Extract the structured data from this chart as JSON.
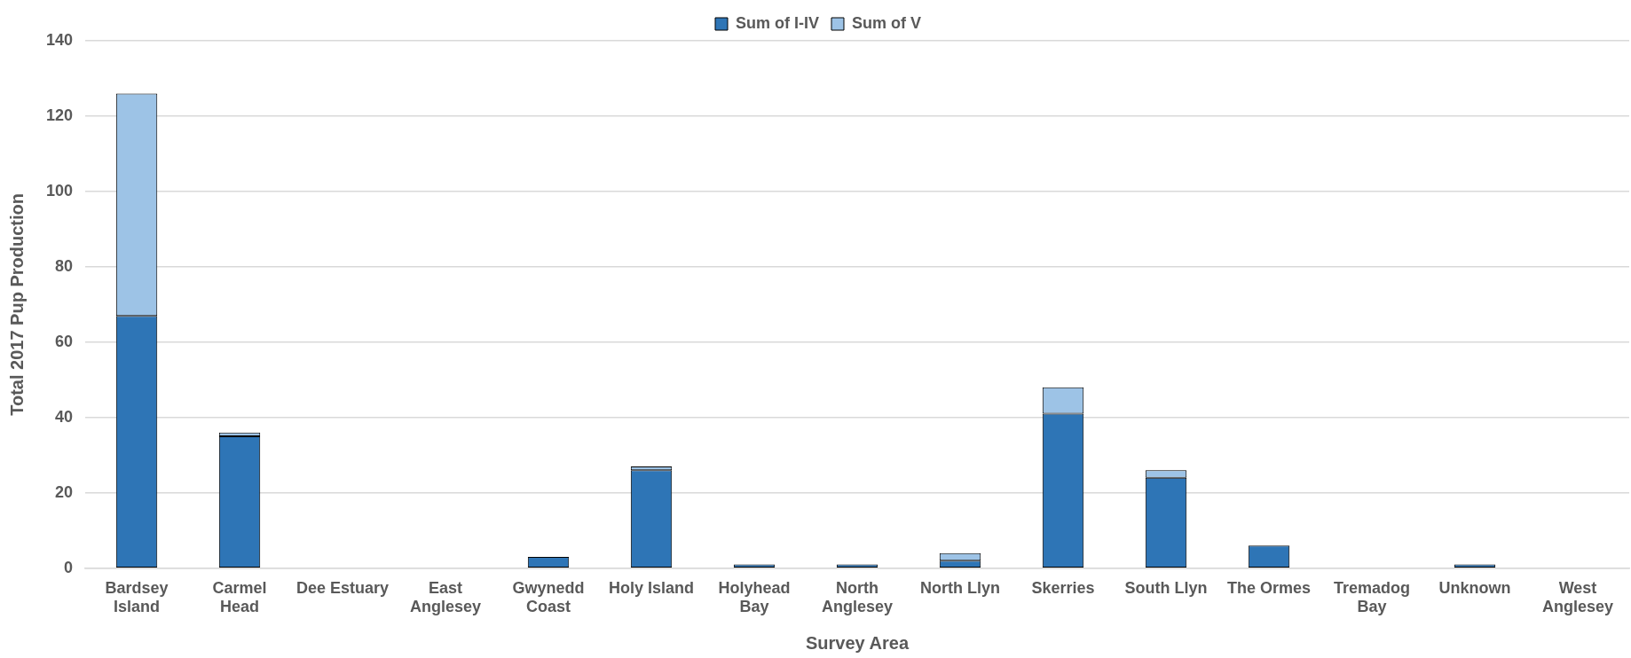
{
  "chart_data": {
    "type": "bar",
    "xlabel": "Survey Area",
    "ylabel": "Total 2017 Pup Production",
    "categories": [
      "Bardsey Island",
      "Carmel Head",
      "Dee Estuary",
      "East Anglesey",
      "Gwynedd Coast",
      "Holy Island",
      "Holyhead Bay",
      "North Anglesey",
      "North Llyn",
      "Skerries",
      "South Llyn",
      "The Ormes",
      "Tremadog Bay",
      "Unknown",
      "West Anglesey"
    ],
    "series": [
      {
        "name": "Sum of I-IV",
        "color": "#2e75b6",
        "values": [
          67,
          35,
          0,
          0,
          3,
          26,
          1,
          1,
          2,
          41,
          24,
          6,
          0,
          1,
          0
        ]
      },
      {
        "name": "Sum of V",
        "color": "#9dc3e6",
        "values": [
          59,
          1,
          0,
          0,
          0,
          1,
          0,
          0,
          2,
          7,
          2,
          0,
          0,
          0,
          0
        ]
      }
    ],
    "stacked": true,
    "ylim": [
      0,
      140
    ],
    "yticks": [
      0,
      20,
      40,
      60,
      80,
      100,
      120,
      140
    ],
    "grid": "y",
    "legend": "top"
  }
}
